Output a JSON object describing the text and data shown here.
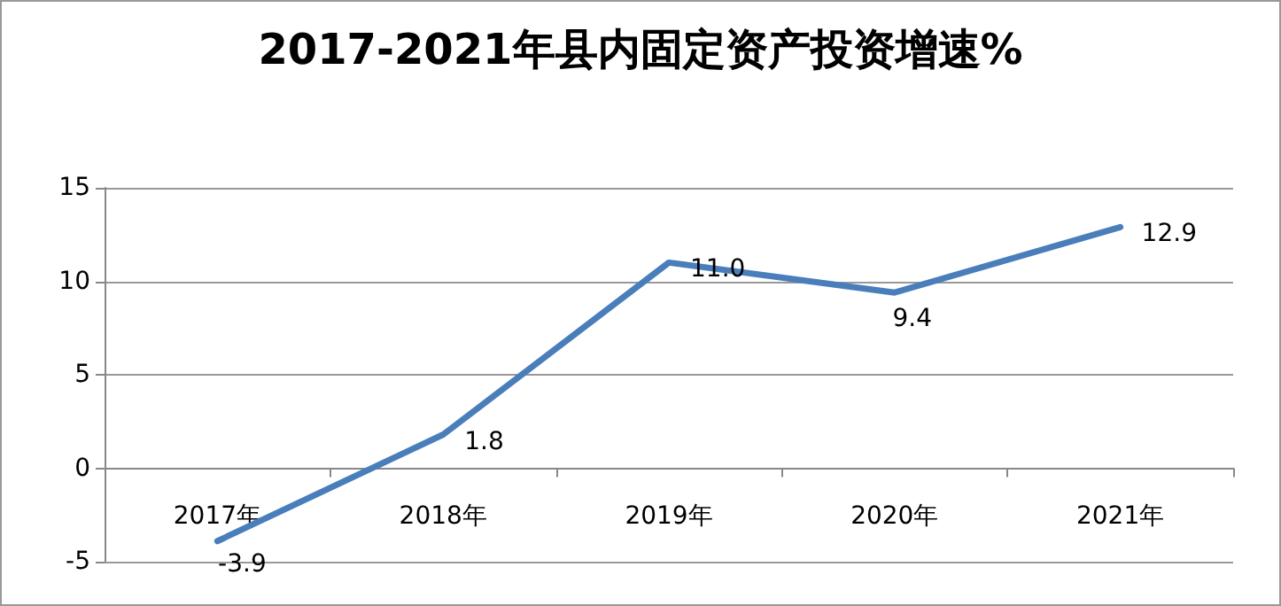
{
  "chart_data": {
    "type": "line",
    "title": "2017-2021年县内固定资产投资增速%",
    "categories": [
      "2017年",
      "2018年",
      "2019年",
      "2020年",
      "2021年"
    ],
    "series": [
      {
        "color": "#4a7ebb",
        "values": [
          -3.9,
          1.8,
          11.0,
          9.4,
          12.9
        ]
      }
    ],
    "value_labels": [
      "-3.9",
      "1.8",
      "11.0",
      "9.4",
      "12.9"
    ],
    "ylim": [
      -5,
      15
    ],
    "yticks": [
      -5,
      0,
      5,
      10,
      15
    ],
    "grid": "y",
    "marker": "none",
    "line_style": "solid"
  }
}
